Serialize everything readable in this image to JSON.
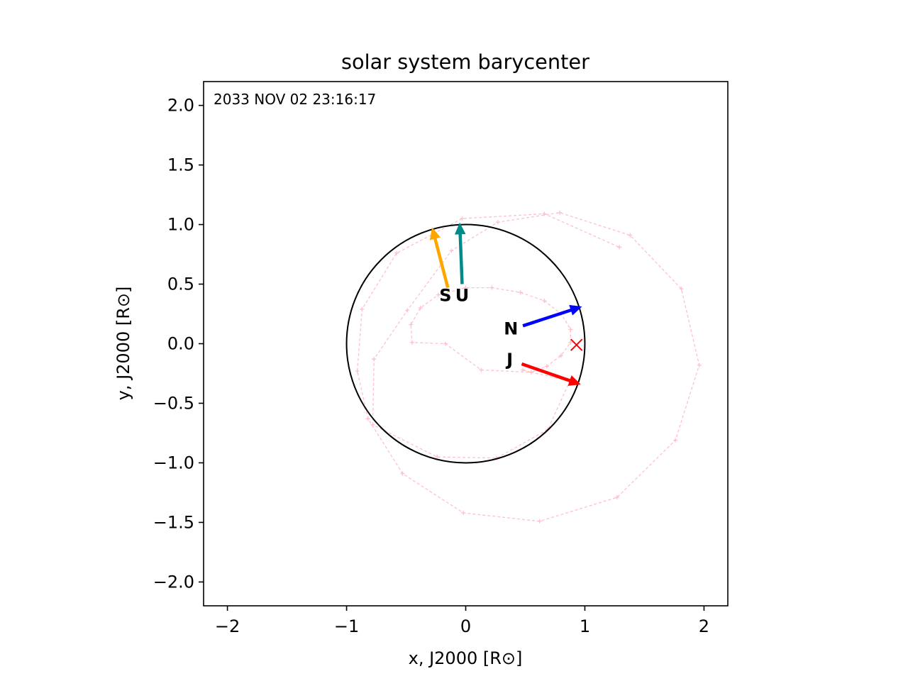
{
  "chart_data": {
    "type": "scatter",
    "title": "solar system barycenter",
    "xlabel": "x, J2000 [R⊙]",
    "ylabel": "y, J2000 [R⊙]",
    "xlim": [
      -2.2,
      2.2
    ],
    "ylim": [
      -2.2,
      2.2
    ],
    "x_ticks": [
      -2,
      -1,
      0,
      1,
      2
    ],
    "x_tick_labels": [
      "−2",
      "−1",
      "0",
      "1",
      "2"
    ],
    "y_ticks": [
      2.0,
      1.5,
      1.0,
      0.5,
      0.0,
      -0.5,
      -1.0,
      -1.5,
      -2.0
    ],
    "y_tick_labels": [
      "2.0",
      "1.5",
      "1.0",
      "0.5",
      "0.0",
      "−0.5",
      "−1.0",
      "−1.5",
      "−2.0"
    ],
    "grid": false,
    "timestamp": "2033 NOV 02 23:16:17",
    "sun_circle": {
      "center": [
        0,
        0
      ],
      "radius": 1.0,
      "color": "#000000"
    },
    "barycenter_marker": {
      "x": 0.93,
      "y": -0.01,
      "symbol": "x",
      "color": "#ff0000"
    },
    "trajectory": {
      "color": "#ffc0cb",
      "linestyle": "dashed",
      "points": [
        [
          0.48,
          -0.22
        ],
        [
          0.55,
          -0.24
        ],
        [
          0.68,
          -0.19
        ],
        [
          0.8,
          -0.1
        ],
        [
          0.88,
          0.01
        ],
        [
          0.88,
          0.12
        ],
        [
          0.8,
          0.25
        ],
        [
          0.66,
          0.36
        ],
        [
          0.46,
          0.43
        ],
        [
          0.22,
          0.47
        ],
        [
          0.0,
          0.47
        ],
        [
          -0.23,
          0.41
        ],
        [
          -0.38,
          0.3
        ],
        [
          -0.46,
          0.16
        ],
        [
          -0.45,
          0.01
        ],
        [
          -0.17,
          0.0
        ],
        [
          0.13,
          -0.22
        ],
        [
          0.55,
          -0.24
        ],
        [
          0.91,
          -0.32
        ],
        [
          0.88,
          -0.3
        ],
        [
          0.69,
          -0.72
        ],
        [
          0.26,
          -0.96
        ],
        [
          -0.24,
          -0.95
        ],
        [
          -0.78,
          -0.68
        ],
        [
          -0.77,
          -0.13
        ],
        [
          -0.49,
          0.28
        ],
        [
          -0.12,
          0.78
        ],
        [
          0.27,
          1.02
        ],
        [
          0.79,
          1.1
        ],
        [
          1.38,
          0.91
        ],
        [
          1.81,
          0.46
        ],
        [
          1.96,
          -0.18
        ],
        [
          1.76,
          -0.81
        ],
        [
          1.27,
          -1.29
        ],
        [
          0.62,
          -1.49
        ],
        [
          -0.02,
          -1.42
        ],
        [
          -0.53,
          -1.09
        ],
        [
          -0.82,
          -0.63
        ],
        [
          -0.91,
          -0.23
        ],
        [
          -0.87,
          0.29
        ],
        [
          -0.58,
          0.76
        ],
        [
          -0.03,
          1.05
        ],
        [
          0.66,
          1.09
        ],
        [
          1.29,
          0.81
        ]
      ]
    },
    "arrows": [
      {
        "label": "S",
        "tail": [
          -0.15,
          0.47
        ],
        "head": [
          -0.28,
          0.97
        ],
        "color": "#ffa500"
      },
      {
        "label": "U",
        "tail": [
          -0.03,
          0.5
        ],
        "head": [
          -0.05,
          1.01
        ],
        "color": "#008b8b"
      },
      {
        "label": "N",
        "tail": [
          0.48,
          0.15
        ],
        "head": [
          0.97,
          0.31
        ],
        "color": "#0000ff"
      },
      {
        "label": "J",
        "tail": [
          0.47,
          -0.17
        ],
        "head": [
          0.96,
          -0.34
        ],
        "color": "#ff0000"
      }
    ],
    "label_positions": {
      "S": [
        -0.17,
        0.4
      ],
      "U": [
        -0.03,
        0.4
      ],
      "N": [
        0.38,
        0.12
      ],
      "J": [
        0.37,
        -0.14
      ]
    }
  }
}
